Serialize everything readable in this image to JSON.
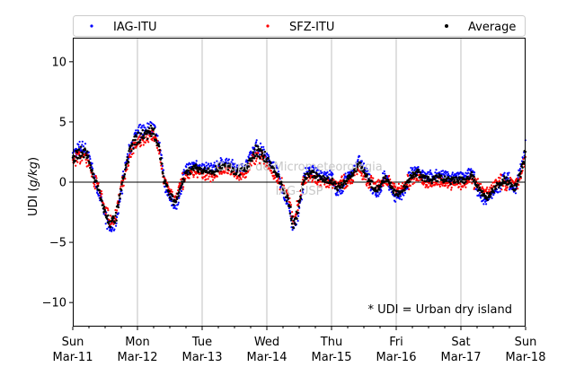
{
  "chart_data": {
    "type": "scatter",
    "title": "",
    "xlabel": "",
    "ylabel": "UDI (g/kg)",
    "ylabel_parts": {
      "prefix": "UDI (",
      "italic": "g/kg",
      "suffix": ")"
    },
    "xlim": [
      "2018-03-11 00:00",
      "2018-03-18 00:00"
    ],
    "ylim": [
      -12,
      12
    ],
    "yticks": [
      -10,
      -5,
      0,
      5,
      10
    ],
    "xticks": [
      {
        "weekday": "Sun",
        "date": "Mar-11"
      },
      {
        "weekday": "Mon",
        "date": "Mar-12"
      },
      {
        "weekday": "Tue",
        "date": "Mar-13"
      },
      {
        "weekday": "Wed",
        "date": "Mar-14"
      },
      {
        "weekday": "Thu",
        "date": "Mar-15"
      },
      {
        "weekday": "Fri",
        "date": "Mar-16"
      },
      {
        "weekday": "Sat",
        "date": "Mar-17"
      },
      {
        "weekday": "Sun",
        "date": "Mar-18"
      }
    ],
    "grid": "vertical",
    "zero_line": true,
    "legend_position": "top",
    "annotation": "* UDI = Urban dry island",
    "watermark": [
      "Grupo de Micrometeorologia",
      "IAG-USP"
    ],
    "series": [
      {
        "name": "IAG-ITU",
        "color": "#0000ff"
      },
      {
        "name": "SFZ-ITU",
        "color": "#ff0000"
      },
      {
        "name": "Average",
        "color": "#000000"
      }
    ],
    "average_curve": {
      "hours": [
        0,
        2,
        4,
        6,
        8,
        10,
        12,
        14,
        16,
        18,
        20,
        22,
        24,
        26,
        28,
        30,
        32,
        34,
        36,
        38,
        40,
        42,
        44,
        46,
        48,
        50,
        52,
        54,
        56,
        58,
        60,
        62,
        64,
        66,
        68,
        70,
        72,
        74,
        76,
        78,
        80,
        82,
        84,
        86,
        88,
        90,
        92,
        94,
        96,
        98,
        100,
        102,
        104,
        106,
        108,
        110,
        112,
        114,
        116,
        118,
        120,
        122,
        124,
        126,
        128,
        130,
        132,
        134,
        136,
        138,
        140,
        142,
        144,
        146,
        148,
        150,
        152,
        154,
        156,
        158,
        160,
        162,
        164,
        166,
        168
      ],
      "udi": [
        2.0,
        2.4,
        2.6,
        1.9,
        0.2,
        -0.8,
        -2.5,
        -3.6,
        -3.0,
        -0.5,
        1.5,
        3.0,
        3.7,
        3.9,
        4.1,
        4.3,
        3.0,
        0.0,
        -1.0,
        -1.8,
        -0.5,
        0.8,
        1.0,
        1.2,
        0.9,
        0.9,
        0.8,
        1.2,
        1.3,
        1.3,
        0.9,
        0.8,
        1.0,
        1.9,
        2.6,
        2.4,
        1.9,
        1.2,
        0.6,
        -0.6,
        -1.6,
        -3.6,
        -1.8,
        0.5,
        0.7,
        0.6,
        0.3,
        0.2,
        0.2,
        -0.5,
        -0.2,
        0.3,
        0.6,
        1.6,
        0.8,
        0.2,
        -0.6,
        -0.4,
        0.4,
        -0.3,
        -1.0,
        -0.7,
        -0.2,
        0.6,
        0.8,
        0.3,
        0.2,
        0.2,
        0.4,
        0.2,
        0.1,
        0.2,
        0.1,
        0.2,
        0.6,
        -0.4,
        -1.0,
        -1.2,
        -0.6,
        -0.2,
        0.2,
        0.0,
        -0.5,
        0.6,
        2.6
      ]
    }
  }
}
